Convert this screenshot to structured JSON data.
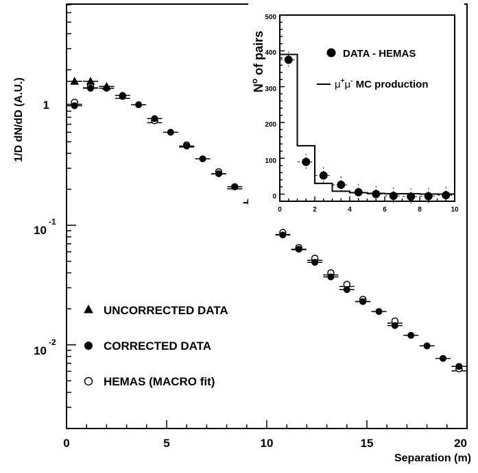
{
  "chart_data": [
    {
      "type": "scatter",
      "ylabel": "1/D dN/dD (A.U.)",
      "xlabel": "Separation (m)",
      "xlim": [
        0,
        20
      ],
      "ylim_log10": [
        -2.7,
        0.85
      ],
      "yscale": "log",
      "x_ticks": [
        "0",
        "5",
        "10",
        "15",
        "20"
      ],
      "y_ticks": [
        {
          "base": "1",
          "exp": ""
        },
        {
          "base": "10",
          "exp": "-1"
        },
        {
          "base": "10",
          "exp": "-2"
        }
      ],
      "legend_position": "bottom-left",
      "series": [
        {
          "name": "UNCORRECTED DATA",
          "marker": "filled-triangle",
          "x": [
            0.4,
            1.2,
            2.0
          ],
          "y": [
            1.6,
            1.6,
            1.45
          ]
        },
        {
          "name": "CORRECTED DATA",
          "marker": "filled-circle",
          "x": [
            0.4,
            1.2,
            2.0,
            2.8,
            3.6,
            4.4,
            5.2,
            6.0,
            6.8,
            7.6,
            8.4,
            9.2,
            10.0,
            10.8,
            11.6,
            12.4,
            13.2,
            14.0,
            14.8,
            15.6,
            16.4,
            17.2,
            18.0,
            18.8,
            19.6
          ],
          "y": [
            1.0,
            1.4,
            1.4,
            1.22,
            1.02,
            0.78,
            0.6,
            0.46,
            0.36,
            0.27,
            0.21,
            0.155,
            0.112,
            0.083,
            0.063,
            0.049,
            0.037,
            0.029,
            0.023,
            0.019,
            0.0145,
            0.012,
            0.0098,
            0.0077,
            0.0066
          ]
        },
        {
          "name": "HEMAS (MACRO fit)",
          "marker": "open-circle",
          "x": [
            0.4,
            1.2,
            2.8,
            4.4,
            6.0,
            7.6,
            8.4,
            9.2,
            10.8,
            11.6,
            12.4,
            13.2,
            14.0,
            14.8,
            16.4,
            19.6
          ],
          "y": [
            1.07,
            1.47,
            1.2,
            0.75,
            0.47,
            0.28,
            0.21,
            0.16,
            0.087,
            0.065,
            0.053,
            0.04,
            0.032,
            0.024,
            0.0158,
            0.0063
          ]
        }
      ]
    },
    {
      "type": "scatter",
      "inset": true,
      "ylabel_base": "N",
      "ylabel_sup": "o",
      "ylabel_rest": " of pairs",
      "xlim": [
        0,
        10
      ],
      "ylim": [
        -20,
        500
      ],
      "x_ticks": [
        "0",
        "2",
        "4",
        "6",
        "8",
        "10"
      ],
      "y_ticks": [
        "0",
        "100",
        "200",
        "300",
        "400",
        "500"
      ],
      "legend_position": "top-right",
      "series": [
        {
          "name": "DATA - HEMAS",
          "marker": "filled-circle",
          "x": [
            0.5,
            1.5,
            2.5,
            3.5,
            4.5,
            5.5,
            6.5,
            7.5,
            8.5,
            9.5
          ],
          "y": [
            375,
            90,
            52,
            26,
            5,
            0,
            -5,
            -7,
            -6,
            -3
          ]
        },
        {
          "name": "MC production",
          "name_math": "μ⁺μ⁻",
          "type": "histogram",
          "bin_edges": [
            0,
            1,
            2,
            3,
            4,
            5,
            6,
            7,
            8,
            9,
            10
          ],
          "values": [
            390,
            135,
            30,
            8,
            4,
            2,
            1,
            1,
            0,
            0
          ]
        }
      ],
      "legend": {
        "data_label": "DATA - HEMAS",
        "mc_prefix_mu": "μ",
        "mc_sup1": "+",
        "mc_sup2": "-",
        "mc_suffix": " MC production"
      }
    }
  ]
}
